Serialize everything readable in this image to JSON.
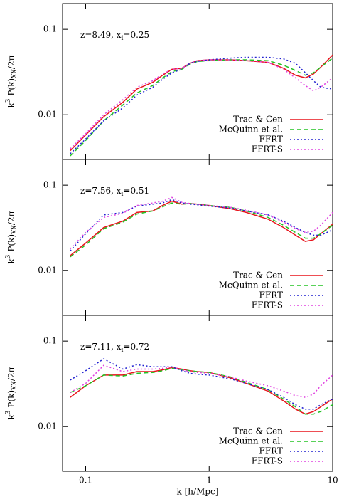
{
  "chart_data": [
    {
      "type": "line",
      "annotation": [
        "z=8.49, x",
        "i",
        "=0.25"
      ],
      "ylabel": [
        "k",
        "3",
        " P(k)",
        "XX",
        "/2π"
      ],
      "xlog": true,
      "ylog": true,
      "xlim": [
        0.065,
        10
      ],
      "ylim": [
        0.003,
        0.2
      ],
      "xticks": [
        0.1,
        1,
        10
      ],
      "yticks": [
        0.01,
        0.1
      ],
      "legend": "lower right",
      "x": [
        0.075,
        0.1,
        0.14,
        0.2,
        0.26,
        0.35,
        0.42,
        0.5,
        0.6,
        0.7,
        0.8,
        1,
        1.5,
        2,
        3,
        4,
        5,
        6,
        7,
        8,
        10
      ],
      "series": [
        {
          "name": "Trac & Cen",
          "color": "#e8141c",
          "dash": "solid",
          "values": [
            0.0038,
            0.0058,
            0.0095,
            0.014,
            0.02,
            0.024,
            0.029,
            0.034,
            0.035,
            0.04,
            0.043,
            0.044,
            0.044,
            0.043,
            0.041,
            0.035,
            0.029,
            0.027,
            0.03,
            0.036,
            0.05
          ]
        },
        {
          "name": "McQuinn et al.",
          "color": "#22c322",
          "dash": "dashed",
          "values": [
            0.0033,
            0.005,
            0.0085,
            0.013,
            0.018,
            0.022,
            0.027,
            0.032,
            0.034,
            0.039,
            0.042,
            0.043,
            0.044,
            0.044,
            0.043,
            0.038,
            0.033,
            0.029,
            0.031,
            0.036,
            0.046
          ]
        },
        {
          "name": "FFRT",
          "color": "#2020d0",
          "dash": "dotted",
          "values": [
            0.0035,
            0.0052,
            0.0085,
            0.012,
            0.017,
            0.021,
            0.026,
            0.031,
            0.034,
            0.04,
            0.042,
            0.044,
            0.046,
            0.047,
            0.047,
            0.045,
            0.04,
            0.031,
            0.025,
            0.021,
            0.02
          ]
        },
        {
          "name": "FFRT-S",
          "color": "#e040e0",
          "dash": "dotted",
          "values": [
            0.004,
            0.006,
            0.01,
            0.015,
            0.021,
            0.025,
            0.03,
            0.034,
            0.035,
            0.04,
            0.043,
            0.044,
            0.044,
            0.043,
            0.041,
            0.034,
            0.027,
            0.022,
            0.019,
            0.021,
            0.027
          ]
        }
      ]
    },
    {
      "type": "line",
      "annotation": [
        "z=7.56, x",
        "i",
        "=0.51"
      ],
      "ylabel": [
        "k",
        "3",
        " P(k)",
        "XX",
        "/2π"
      ],
      "xlog": true,
      "ylog": true,
      "xlim": [
        0.065,
        10
      ],
      "ylim": [
        0.003,
        0.2
      ],
      "xticks": [
        0.1,
        1,
        10
      ],
      "yticks": [
        0.01,
        0.1
      ],
      "legend": "lower right",
      "x": [
        0.075,
        0.1,
        0.14,
        0.2,
        0.26,
        0.35,
        0.42,
        0.5,
        0.6,
        0.7,
        0.8,
        1,
        1.5,
        2,
        3,
        4,
        5,
        6,
        7,
        8,
        10
      ],
      "series": [
        {
          "name": "Trac & Cen",
          "color": "#e8141c",
          "dash": "solid",
          "values": [
            0.015,
            0.021,
            0.032,
            0.038,
            0.048,
            0.05,
            0.058,
            0.065,
            0.06,
            0.061,
            0.06,
            0.058,
            0.053,
            0.048,
            0.04,
            0.032,
            0.026,
            0.022,
            0.023,
            0.027,
            0.035
          ]
        },
        {
          "name": "McQuinn et al.",
          "color": "#22c322",
          "dash": "dashed",
          "values": [
            0.0145,
            0.02,
            0.031,
            0.037,
            0.046,
            0.05,
            0.056,
            0.062,
            0.06,
            0.061,
            0.06,
            0.058,
            0.055,
            0.05,
            0.042,
            0.034,
            0.028,
            0.024,
            0.024,
            0.027,
            0.034
          ]
        },
        {
          "name": "FFRT",
          "color": "#2020d0",
          "dash": "dotted",
          "values": [
            0.017,
            0.027,
            0.045,
            0.048,
            0.057,
            0.06,
            0.062,
            0.068,
            0.062,
            0.06,
            0.059,
            0.057,
            0.054,
            0.05,
            0.045,
            0.038,
            0.032,
            0.028,
            0.026,
            0.026,
            0.03
          ]
        },
        {
          "name": "FFRT-S",
          "color": "#e040e0",
          "dash": "dotted",
          "values": [
            0.018,
            0.028,
            0.042,
            0.047,
            0.058,
            0.062,
            0.065,
            0.072,
            0.063,
            0.061,
            0.06,
            0.058,
            0.055,
            0.051,
            0.045,
            0.037,
            0.031,
            0.028,
            0.029,
            0.034,
            0.048
          ]
        }
      ]
    },
    {
      "type": "line",
      "annotation": [
        "z=7.11, x",
        "i",
        "=0.72"
      ],
      "ylabel": [
        "k",
        "3",
        " P(k)",
        "XX",
        "/2π"
      ],
      "xlabel": "k [h/Mpc]",
      "xlog": true,
      "ylog": true,
      "xlim": [
        0.065,
        10
      ],
      "ylim": [
        0.003,
        0.2
      ],
      "xticks": [
        0.1,
        1,
        10
      ],
      "yticks": [
        0.01,
        0.1
      ],
      "legend": "lower right",
      "x": [
        0.075,
        0.1,
        0.14,
        0.2,
        0.26,
        0.35,
        0.42,
        0.5,
        0.6,
        0.7,
        0.8,
        1,
        1.5,
        2,
        3,
        4,
        5,
        6,
        7,
        8,
        10
      ],
      "series": [
        {
          "name": "Trac & Cen",
          "color": "#e8141c",
          "dash": "solid",
          "values": [
            0.022,
            0.03,
            0.04,
            0.04,
            0.044,
            0.044,
            0.046,
            0.049,
            0.047,
            0.045,
            0.044,
            0.043,
            0.037,
            0.032,
            0.026,
            0.02,
            0.016,
            0.014,
            0.015,
            0.017,
            0.021
          ]
        },
        {
          "name": "McQuinn et al.",
          "color": "#22c322",
          "dash": "dashed",
          "values": [
            0.025,
            0.03,
            0.04,
            0.039,
            0.042,
            0.043,
            0.045,
            0.048,
            0.046,
            0.045,
            0.044,
            0.043,
            0.038,
            0.033,
            0.027,
            0.021,
            0.017,
            0.014,
            0.014,
            0.015,
            0.018
          ]
        },
        {
          "name": "FFRT",
          "color": "#2020d0",
          "dash": "dotted",
          "values": [
            0.035,
            0.045,
            0.062,
            0.047,
            0.053,
            0.05,
            0.05,
            0.05,
            0.045,
            0.042,
            0.041,
            0.04,
            0.036,
            0.032,
            0.027,
            0.022,
            0.018,
            0.016,
            0.016,
            0.018,
            0.021
          ]
        },
        {
          "name": "FFRT-S",
          "color": "#e040e0",
          "dash": "dotted",
          "values": [
            0.025,
            0.032,
            0.052,
            0.044,
            0.047,
            0.047,
            0.048,
            0.05,
            0.046,
            0.044,
            0.043,
            0.042,
            0.038,
            0.034,
            0.03,
            0.026,
            0.023,
            0.022,
            0.024,
            0.03,
            0.04
          ]
        }
      ]
    }
  ]
}
